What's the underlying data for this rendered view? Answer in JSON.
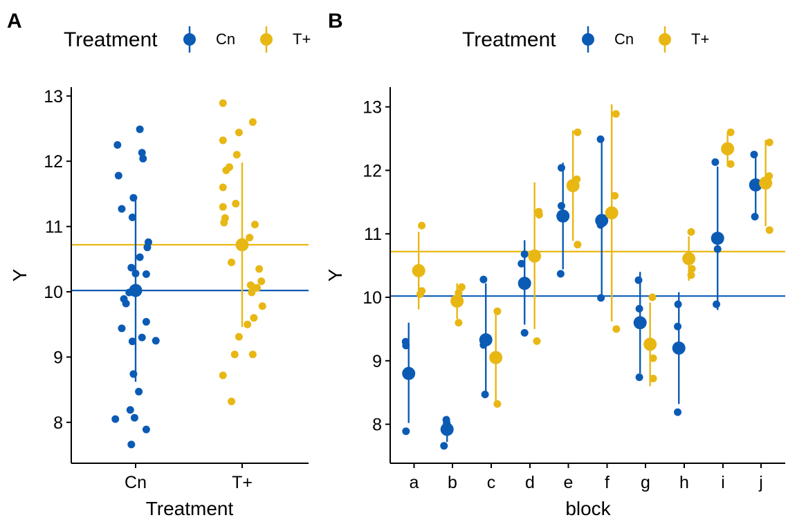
{
  "colors": {
    "Cn": "#0b5bb5",
    "T+": "#e8b714",
    "axis": "#000000"
  },
  "panels": {
    "A": {
      "tag": "A",
      "legend": {
        "title": "Treatment",
        "items": [
          "Cn",
          "T+"
        ]
      },
      "chart_data": {
        "type": "scatter",
        "title": "",
        "xlabel": "Treatment",
        "ylabel": "Y",
        "categories": [
          "Cn",
          "T+"
        ],
        "ylim": [
          7.4,
          13.1
        ],
        "yticks": [
          8,
          9,
          10,
          11,
          12,
          13
        ],
        "grid": false,
        "legend_position": "top",
        "reference_lines": [
          {
            "series": "Cn",
            "y": 10.02
          },
          {
            "series": "T+",
            "y": 10.72
          }
        ],
        "series": [
          {
            "name": "Cn",
            "summary": {
              "x": "Cn",
              "mean": 10.02,
              "low": 8.62,
              "high": 11.4
            },
            "points": [
              {
                "x": "Cn",
                "dx": -0.17,
                "y": 12.25
              },
              {
                "x": "Cn",
                "dx": 0.04,
                "y": 12.49
              },
              {
                "x": "Cn",
                "dx": 0.06,
                "y": 12.13
              },
              {
                "x": "Cn",
                "dx": 0.07,
                "y": 12.04
              },
              {
                "x": "Cn",
                "dx": -0.16,
                "y": 11.78
              },
              {
                "x": "Cn",
                "dx": -0.02,
                "y": 11.44
              },
              {
                "x": "Cn",
                "dx": -0.13,
                "y": 11.27
              },
              {
                "x": "Cn",
                "dx": -0.03,
                "y": 11.14
              },
              {
                "x": "Cn",
                "dx": 0.12,
                "y": 10.76
              },
              {
                "x": "Cn",
                "dx": 0.11,
                "y": 10.68
              },
              {
                "x": "Cn",
                "dx": 0.04,
                "y": 10.53
              },
              {
                "x": "Cn",
                "dx": -0.04,
                "y": 10.37
              },
              {
                "x": "Cn",
                "dx": 0.0,
                "y": 10.28
              },
              {
                "x": "Cn",
                "dx": 0.1,
                "y": 10.27
              },
              {
                "x": "Cn",
                "dx": -0.06,
                "y": 9.99
              },
              {
                "x": "Cn",
                "dx": -0.11,
                "y": 9.89
              },
              {
                "x": "Cn",
                "dx": -0.09,
                "y": 9.82
              },
              {
                "x": "Cn",
                "dx": 0.1,
                "y": 9.54
              },
              {
                "x": "Cn",
                "dx": -0.13,
                "y": 9.44
              },
              {
                "x": "Cn",
                "dx": 0.06,
                "y": 9.3
              },
              {
                "x": "Cn",
                "dx": -0.03,
                "y": 9.24
              },
              {
                "x": "Cn",
                "dx": 0.19,
                "y": 9.25
              },
              {
                "x": "Cn",
                "dx": -0.02,
                "y": 8.74
              },
              {
                "x": "Cn",
                "dx": 0.03,
                "y": 8.47
              },
              {
                "x": "Cn",
                "dx": -0.05,
                "y": 8.19
              },
              {
                "x": "Cn",
                "dx": -0.19,
                "y": 8.05
              },
              {
                "x": "Cn",
                "dx": -0.01,
                "y": 8.07
              },
              {
                "x": "Cn",
                "dx": 0.1,
                "y": 7.89
              },
              {
                "x": "Cn",
                "dx": -0.04,
                "y": 7.66
              }
            ]
          },
          {
            "name": "T+",
            "summary": {
              "x": "T+",
              "mean": 10.72,
              "low": 9.46,
              "high": 11.98
            },
            "points": [
              {
                "x": "T+",
                "dx": -0.18,
                "y": 12.89
              },
              {
                "x": "T+",
                "dx": 0.1,
                "y": 12.6
              },
              {
                "x": "T+",
                "dx": -0.03,
                "y": 12.44
              },
              {
                "x": "T+",
                "dx": -0.18,
                "y": 12.32
              },
              {
                "x": "T+",
                "dx": -0.05,
                "y": 12.1
              },
              {
                "x": "T+",
                "dx": -0.12,
                "y": 11.91
              },
              {
                "x": "T+",
                "dx": -0.15,
                "y": 11.86
              },
              {
                "x": "T+",
                "dx": -0.18,
                "y": 11.6
              },
              {
                "x": "T+",
                "dx": -0.06,
                "y": 11.35
              },
              {
                "x": "T+",
                "dx": -0.18,
                "y": 11.3
              },
              {
                "x": "T+",
                "dx": -0.16,
                "y": 11.13
              },
              {
                "x": "T+",
                "dx": -0.17,
                "y": 11.06
              },
              {
                "x": "T+",
                "dx": 0.12,
                "y": 11.03
              },
              {
                "x": "T+",
                "dx": 0.07,
                "y": 10.83
              },
              {
                "x": "T+",
                "dx": -0.1,
                "y": 10.45
              },
              {
                "x": "T+",
                "dx": 0.16,
                "y": 10.35
              },
              {
                "x": "T+",
                "dx": 0.18,
                "y": 10.16
              },
              {
                "x": "T+",
                "dx": 0.08,
                "y": 10.1
              },
              {
                "x": "T+",
                "dx": 0.1,
                "y": 10.07
              },
              {
                "x": "T+",
                "dx": 0.14,
                "y": 10.06
              },
              {
                "x": "T+",
                "dx": 0.09,
                "y": 9.99
              },
              {
                "x": "T+",
                "dx": 0.19,
                "y": 9.78
              },
              {
                "x": "T+",
                "dx": 0.11,
                "y": 9.6
              },
              {
                "x": "T+",
                "dx": 0.05,
                "y": 9.5
              },
              {
                "x": "T+",
                "dx": -0.03,
                "y": 9.31
              },
              {
                "x": "T+",
                "dx": -0.07,
                "y": 9.04
              },
              {
                "x": "T+",
                "dx": 0.1,
                "y": 9.04
              },
              {
                "x": "T+",
                "dx": -0.18,
                "y": 8.72
              },
              {
                "x": "T+",
                "dx": -0.1,
                "y": 8.32
              }
            ]
          }
        ]
      }
    },
    "B": {
      "tag": "B",
      "legend": {
        "title": "Treatment",
        "items": [
          "Cn",
          "T+"
        ]
      },
      "chart_data": {
        "type": "scatter",
        "title": "",
        "xlabel": "block",
        "ylabel": "Y",
        "categories": [
          "a",
          "b",
          "c",
          "d",
          "e",
          "f",
          "g",
          "h",
          "i",
          "j"
        ],
        "ylim": [
          7.4,
          13.3
        ],
        "yticks": [
          8,
          9,
          10,
          11,
          12,
          13
        ],
        "grid": false,
        "legend_position": "top",
        "reference_lines": [
          {
            "series": "Cn",
            "y": 10.02
          },
          {
            "series": "T+",
            "y": 10.72
          }
        ],
        "series": [
          {
            "name": "Cn",
            "summary": [
              {
                "x": "a",
                "mean": 8.8,
                "low": 8.02,
                "high": 9.6
              },
              {
                "x": "b",
                "mean": 7.92,
                "low": 7.72,
                "high": 8.13
              },
              {
                "x": "c",
                "mean": 9.33,
                "low": 8.45,
                "high": 10.22
              },
              {
                "x": "d",
                "mean": 10.22,
                "low": 9.57,
                "high": 10.9
              },
              {
                "x": "e",
                "mean": 11.28,
                "low": 10.44,
                "high": 12.12
              },
              {
                "x": "f",
                "mean": 11.21,
                "low": 9.99,
                "high": 12.44
              },
              {
                "x": "g",
                "mean": 9.6,
                "low": 8.8,
                "high": 10.4
              },
              {
                "x": "h",
                "mean": 9.2,
                "low": 8.32,
                "high": 10.08
              },
              {
                "x": "i",
                "mean": 10.93,
                "low": 9.8,
                "high": 12.06
              },
              {
                "x": "j",
                "mean": 11.77,
                "low": 11.27,
                "high": 12.28
              }
            ],
            "points": [
              {
                "x": "a",
                "dx": -0.22,
                "y": 9.3
              },
              {
                "x": "a",
                "dx": -0.21,
                "y": 9.24
              },
              {
                "x": "a",
                "dx": -0.21,
                "y": 7.89
              },
              {
                "x": "b",
                "dx": -0.16,
                "y": 8.07
              },
              {
                "x": "b",
                "dx": -0.15,
                "y": 8.02
              },
              {
                "x": "b",
                "dx": -0.22,
                "y": 7.66
              },
              {
                "x": "c",
                "dx": -0.2,
                "y": 10.28
              },
              {
                "x": "c",
                "dx": -0.2,
                "y": 9.25
              },
              {
                "x": "c",
                "dx": -0.16,
                "y": 8.47
              },
              {
                "x": "d",
                "dx": -0.22,
                "y": 10.53
              },
              {
                "x": "d",
                "dx": -0.14,
                "y": 10.68
              },
              {
                "x": "d",
                "dx": -0.14,
                "y": 9.44
              },
              {
                "x": "e",
                "dx": -0.18,
                "y": 12.04
              },
              {
                "x": "e",
                "dx": -0.18,
                "y": 11.44
              },
              {
                "x": "e",
                "dx": -0.2,
                "y": 10.37
              },
              {
                "x": "f",
                "dx": -0.17,
                "y": 12.49
              },
              {
                "x": "f",
                "dx": -0.17,
                "y": 11.14
              },
              {
                "x": "f",
                "dx": -0.16,
                "y": 9.99
              },
              {
                "x": "g",
                "dx": -0.18,
                "y": 10.27
              },
              {
                "x": "g",
                "dx": -0.16,
                "y": 9.82
              },
              {
                "x": "g",
                "dx": -0.16,
                "y": 8.74
              },
              {
                "x": "h",
                "dx": -0.16,
                "y": 9.89
              },
              {
                "x": "h",
                "dx": -0.17,
                "y": 9.54
              },
              {
                "x": "h",
                "dx": -0.17,
                "y": 8.19
              },
              {
                "x": "i",
                "dx": -0.2,
                "y": 12.13
              },
              {
                "x": "i",
                "dx": -0.14,
                "y": 10.76
              },
              {
                "x": "i",
                "dx": -0.17,
                "y": 9.89
              },
              {
                "x": "j",
                "dx": -0.18,
                "y": 12.25
              },
              {
                "x": "j",
                "dx": -0.19,
                "y": 11.78
              },
              {
                "x": "j",
                "dx": -0.16,
                "y": 11.27
              }
            ]
          },
          {
            "name": "T+",
            "summary": [
              {
                "x": "a",
                "mean": 10.42,
                "low": 9.81,
                "high": 11.03
              },
              {
                "x": "b",
                "mean": 9.94,
                "low": 9.66,
                "high": 10.22
              },
              {
                "x": "c",
                "mean": 9.05,
                "low": 8.32,
                "high": 9.78
              },
              {
                "x": "d",
                "mean": 10.65,
                "low": 9.5,
                "high": 11.81
              },
              {
                "x": "e",
                "mean": 11.76,
                "low": 10.89,
                "high": 12.63
              },
              {
                "x": "f",
                "mean": 11.33,
                "low": 9.62,
                "high": 13.04
              },
              {
                "x": "g",
                "mean": 9.26,
                "low": 8.6,
                "high": 9.92
              },
              {
                "x": "h",
                "mean": 10.61,
                "low": 10.26,
                "high": 10.96
              },
              {
                "x": "i",
                "mean": 12.34,
                "low": 12.06,
                "high": 12.6
              },
              {
                "x": "j",
                "mean": 11.8,
                "low": 11.12,
                "high": 12.48
              }
            ],
            "points": [
              {
                "x": "a",
                "dx": 0.2,
                "y": 11.13
              },
              {
                "x": "a",
                "dx": 0.2,
                "y": 10.1
              },
              {
                "x": "a",
                "dx": 0.16,
                "y": 10.05
              },
              {
                "x": "b",
                "dx": 0.24,
                "y": 10.16
              },
              {
                "x": "b",
                "dx": 0.16,
                "y": 10.07
              },
              {
                "x": "b",
                "dx": 0.16,
                "y": 9.6
              },
              {
                "x": "c",
                "dx": 0.16,
                "y": 9.78
              },
              {
                "x": "c",
                "dx": 0.16,
                "y": 9.04
              },
              {
                "x": "c",
                "dx": 0.16,
                "y": 8.32
              },
              {
                "x": "d",
                "dx": 0.23,
                "y": 11.35
              },
              {
                "x": "d",
                "dx": 0.24,
                "y": 11.3
              },
              {
                "x": "d",
                "dx": 0.18,
                "y": 9.31
              },
              {
                "x": "e",
                "dx": 0.24,
                "y": 12.6
              },
              {
                "x": "e",
                "dx": 0.22,
                "y": 11.86
              },
              {
                "x": "e",
                "dx": 0.24,
                "y": 10.83
              },
              {
                "x": "f",
                "dx": 0.23,
                "y": 12.89
              },
              {
                "x": "f",
                "dx": 0.2,
                "y": 11.6
              },
              {
                "x": "f",
                "dx": 0.24,
                "y": 9.5
              },
              {
                "x": "g",
                "dx": 0.18,
                "y": 10.0
              },
              {
                "x": "g",
                "dx": 0.2,
                "y": 9.04
              },
              {
                "x": "g",
                "dx": 0.2,
                "y": 8.72
              },
              {
                "x": "h",
                "dx": 0.18,
                "y": 11.03
              },
              {
                "x": "h",
                "dx": 0.2,
                "y": 10.45
              },
              {
                "x": "h",
                "dx": 0.18,
                "y": 10.35
              },
              {
                "x": "i",
                "dx": 0.2,
                "y": 12.6
              },
              {
                "x": "i",
                "dx": 0.14,
                "y": 12.32
              },
              {
                "x": "i",
                "dx": 0.2,
                "y": 12.1
              },
              {
                "x": "j",
                "dx": 0.22,
                "y": 12.44
              },
              {
                "x": "j",
                "dx": 0.21,
                "y": 11.91
              },
              {
                "x": "j",
                "dx": 0.22,
                "y": 11.06
              }
            ]
          }
        ]
      }
    }
  }
}
